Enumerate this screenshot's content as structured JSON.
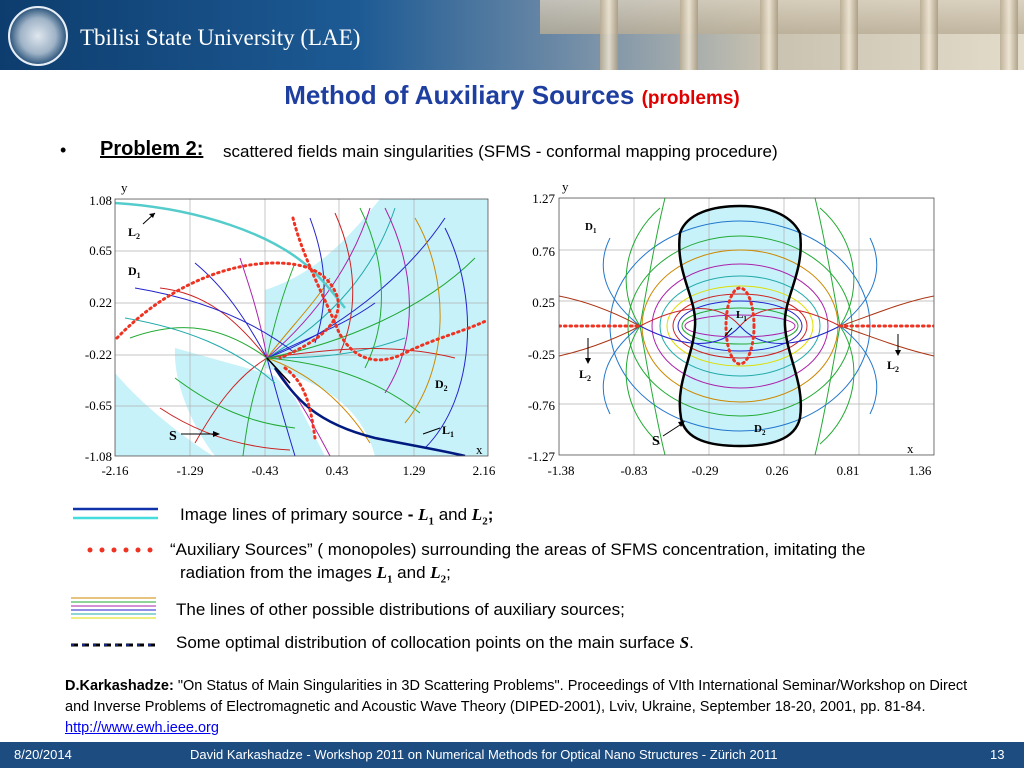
{
  "header": {
    "university": "Tbilisi State University (LAE)"
  },
  "title": {
    "main": "Method of Auxiliary Sources",
    "sub": "(problems)"
  },
  "bullet": {
    "marker": "•",
    "label": "Problem 2:",
    "text": "scattered fields main singularities (SFMS - conformal mapping procedure)"
  },
  "figure_left": {
    "y_axis_label": "y",
    "x_axis_label": "x",
    "y_ticks": [
      "1.08",
      "0.65",
      "0.22",
      "-0.22",
      "-0.65",
      "-1.08"
    ],
    "x_ticks": [
      "-2.16",
      "-1.29",
      "-0.43",
      "0.43",
      "1.29",
      "2.16"
    ],
    "labels": {
      "L2": "L",
      "L2_sub": "2",
      "D1": "D",
      "D1_sub": "1",
      "D2": "D",
      "D2_sub": "2",
      "S": "S",
      "L1": "L",
      "L1_sub": "1"
    }
  },
  "figure_right": {
    "y_axis_label": "y",
    "x_axis_label": "x",
    "y_ticks": [
      "1.27",
      "0.76",
      "0.25",
      "-0.25",
      "-0.76",
      "-1.27"
    ],
    "x_ticks": [
      "-1.38",
      "-0.83",
      "-0.29",
      "0.26",
      "0.81",
      "1.36"
    ],
    "labels": {
      "D1": "D",
      "D1_sub": "1",
      "L1": "L",
      "L1_sub": "1",
      "L2_left": "L",
      "L2_left_sub": "2",
      "L2_right": "L",
      "L2_right_sub": "2",
      "D2": "D",
      "D2_sub": "2",
      "S": "S"
    }
  },
  "legend": {
    "row1": {
      "text": "Image lines of primary source",
      "dash": " - ",
      "L1": "L",
      "L1_sub": "1",
      "and": " and ",
      "L2": "L",
      "L2_sub": "2",
      "end": ";"
    },
    "row2": {
      "text": "“Auxiliary Sources” ( monopoles) surrounding the areas of SFMS concentration, imitating the",
      "text2": "radiation from the images",
      "L1": "L",
      "L1_sub": "1",
      "and": " and ",
      "L2": "L",
      "L2_sub": "2",
      "end": ";"
    },
    "row3": {
      "text": "The lines of other possible distributions of auxiliary sources;"
    },
    "row4": {
      "text": "Some optimal distribution of collocation points on the main surface",
      "S": "S",
      "end": "."
    }
  },
  "reference": {
    "author": "D.Karkashadze:",
    "text": " \"On Status of Main Singularities in 3D Scattering Problems\". Proceedings of VIth International Seminar/Workshop on Direct and Inverse Problems of Electromagnetic and Acoustic Wave Theory (DIPED-2001), Lviv, Ukraine, September 18-20, 2001, pp. 81-84. ",
    "link": "http://www.ewh.ieee.org"
  },
  "footer": {
    "date": "8/20/2014",
    "center": "David Karkashadze - Workshop 2011 on Numerical Methods for Optical Nano Structures - Zürich 2011",
    "page": "13"
  },
  "colors": {
    "header_blue": "#1c4c80",
    "title_blue": "#1f3fa0",
    "accent_red": "#e00000",
    "dot_red": "#ee3322",
    "area_cyan": "#c8f2fa"
  }
}
